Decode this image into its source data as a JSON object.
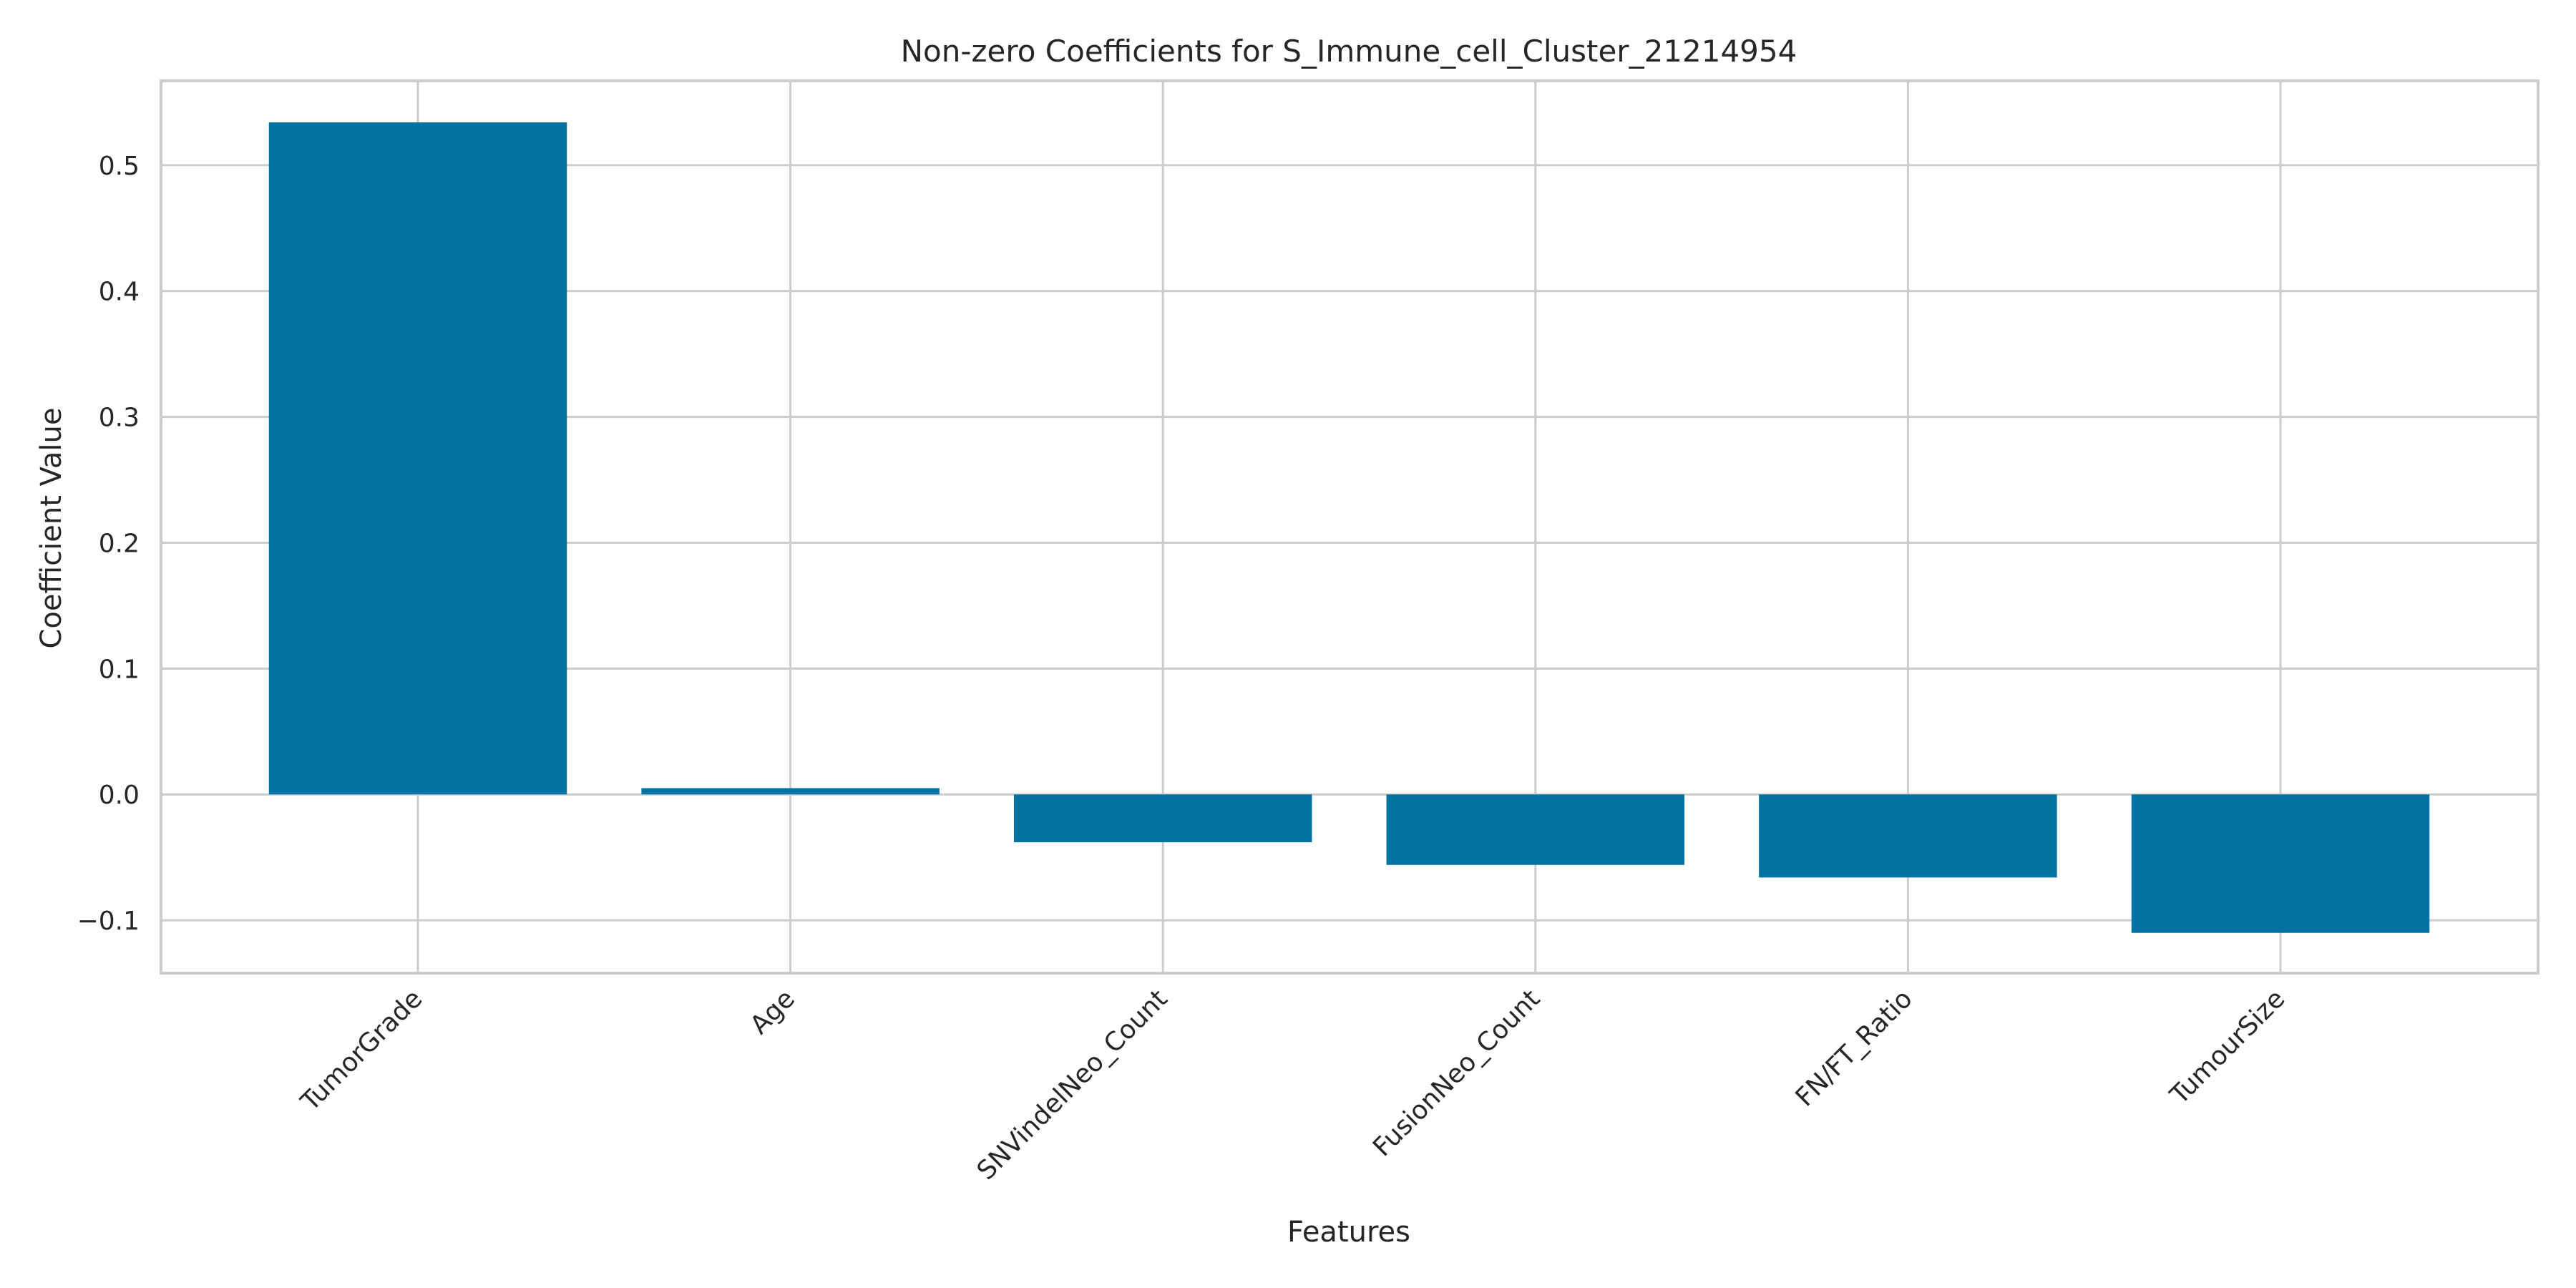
{
  "chart_data": {
    "type": "bar",
    "title": "Non-zero Coefficients for S_Immune_cell_Cluster_21214954",
    "xlabel": "Features",
    "ylabel": "Coefficient Value",
    "categories": [
      "TumorGrade",
      "Age",
      "SNVindelNeo_Count",
      "FusionNeo_Count",
      "FN/FT_Ratio",
      "TumourSize"
    ],
    "values": [
      0.534,
      0.005,
      -0.038,
      -0.056,
      -0.066,
      -0.11
    ],
    "ylim": [
      -0.142,
      0.567
    ],
    "yticks": [
      -0.1,
      0.0,
      0.1,
      0.2,
      0.3,
      0.4,
      0.5
    ],
    "ytick_labels": [
      "−0.1",
      "0.0",
      "0.1",
      "0.2",
      "0.3",
      "0.4",
      "0.5"
    ],
    "bar_color": "#0173a2",
    "grid": true,
    "legend": false
  }
}
